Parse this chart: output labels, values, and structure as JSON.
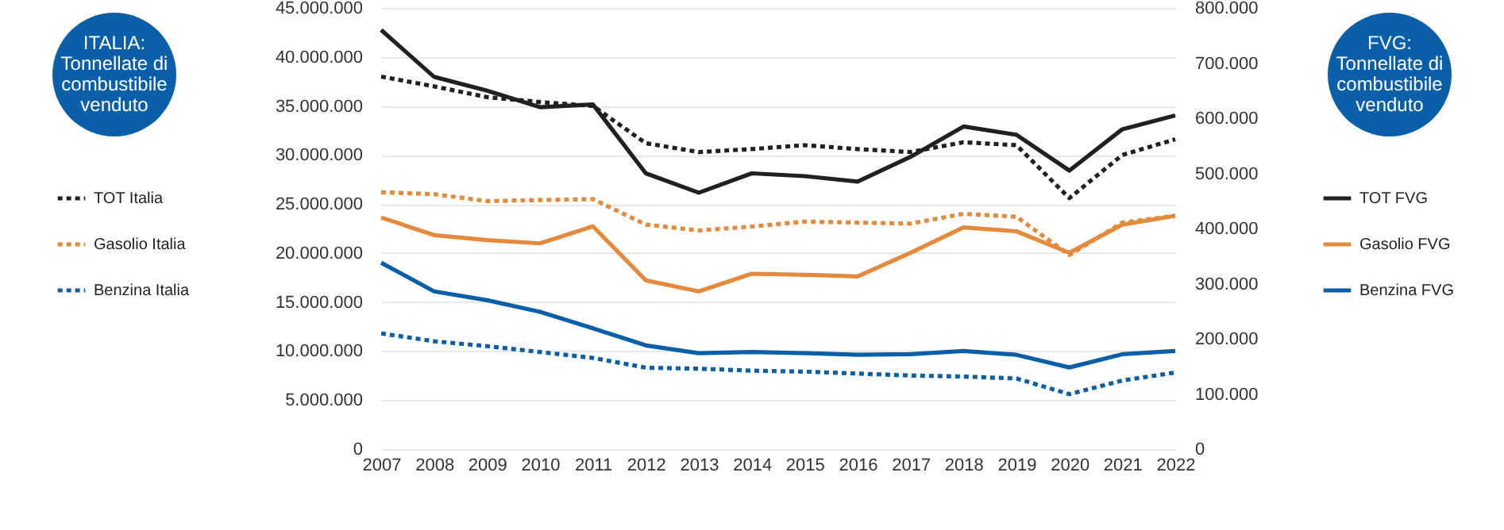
{
  "chart_data": {
    "type": "line",
    "categories": [
      "2007",
      "2008",
      "2009",
      "2010",
      "2011",
      "2012",
      "2013",
      "2014",
      "2015",
      "2016",
      "2017",
      "2018",
      "2019",
      "2020",
      "2021",
      "2022"
    ],
    "series": [
      {
        "name": "TOT Italia",
        "color": "#231f20",
        "line_style": "dotted",
        "values": [
          38000000,
          37000000,
          35900000,
          35400000,
          35000000,
          31200000,
          30300000,
          30600000,
          31000000,
          30600000,
          30300000,
          31300000,
          31000000,
          25600000,
          30000000,
          31600000
        ]
      },
      {
        "name": "Gasolio Italia",
        "color": "#e58a3c",
        "line_style": "dotted",
        "values": [
          26200000,
          26000000,
          25300000,
          25400000,
          25500000,
          22900000,
          22300000,
          22700000,
          23200000,
          23100000,
          23000000,
          24000000,
          23700000,
          19800000,
          23100000,
          23800000
        ]
      },
      {
        "name": "Benzina Italia",
        "color": "#0b5ea8",
        "line_style": "dotted",
        "values": [
          11800000,
          11000000,
          10500000,
          9900000,
          9300000,
          8300000,
          8200000,
          8000000,
          7900000,
          7700000,
          7500000,
          7400000,
          7200000,
          5600000,
          7000000,
          7800000
        ]
      },
      {
        "name": "TOT FVG",
        "color": "#231f20",
        "line_style": "solid",
        "axis": "y2",
        "values": [
          760000,
          675000,
          650000,
          620000,
          625000,
          500000,
          465000,
          500000,
          495000,
          485000,
          530000,
          585000,
          570000,
          505000,
          580000,
          605000
        ]
      },
      {
        "name": "Gasolio FVG",
        "color": "#e58a3c",
        "line_style": "solid",
        "axis": "y2",
        "values": [
          420000,
          388000,
          379000,
          373000,
          404000,
          306000,
          286000,
          318000,
          316000,
          313000,
          356000,
          402000,
          395000,
          356000,
          407000,
          423000
        ]
      },
      {
        "name": "Benzina FVG",
        "color": "#0b5ea8",
        "line_style": "solid",
        "axis": "y2",
        "values": [
          338000,
          286000,
          270000,
          249000,
          219000,
          188000,
          174000,
          176000,
          174000,
          171000,
          172000,
          178000,
          171000,
          148000,
          172000,
          178000
        ]
      }
    ],
    "ylim": [
      0,
      45000000
    ],
    "yticks": [
      {
        "value": 0,
        "label": "0"
      },
      {
        "value": 5000000,
        "label": "5.000.000"
      },
      {
        "value": 10000000,
        "label": "10.000.000"
      },
      {
        "value": 15000000,
        "label": "15.000.000"
      },
      {
        "value": 20000000,
        "label": "20.000.000"
      },
      {
        "value": 25000000,
        "label": "25.000.000"
      },
      {
        "value": 30000000,
        "label": "30.000.000"
      },
      {
        "value": 35000000,
        "label": "35.000.000"
      },
      {
        "value": 40000000,
        "label": "40.000.000"
      },
      {
        "value": 45000000,
        "label": "45.000.000"
      }
    ],
    "y2lim": [
      0,
      800000
    ],
    "y2ticks": [
      {
        "value": 0,
        "label": "0"
      },
      {
        "value": 100000,
        "label": "100.000"
      },
      {
        "value": 200000,
        "label": "200.000"
      },
      {
        "value": 300000,
        "label": "300.000"
      },
      {
        "value": 400000,
        "label": "400.000"
      },
      {
        "value": 500000,
        "label": "500.000"
      },
      {
        "value": 600000,
        "label": "600.000"
      },
      {
        "value": 700000,
        "label": "700.000"
      },
      {
        "value": 800000,
        "label": "800.000"
      }
    ],
    "grid": "y",
    "legend": "left",
    "annotations": [
      "ITALIA:\nTonnellate di\ncombustibile\nvenduto",
      "FVG:\nTonnellate di\ncombustibile\nvenduto"
    ]
  }
}
